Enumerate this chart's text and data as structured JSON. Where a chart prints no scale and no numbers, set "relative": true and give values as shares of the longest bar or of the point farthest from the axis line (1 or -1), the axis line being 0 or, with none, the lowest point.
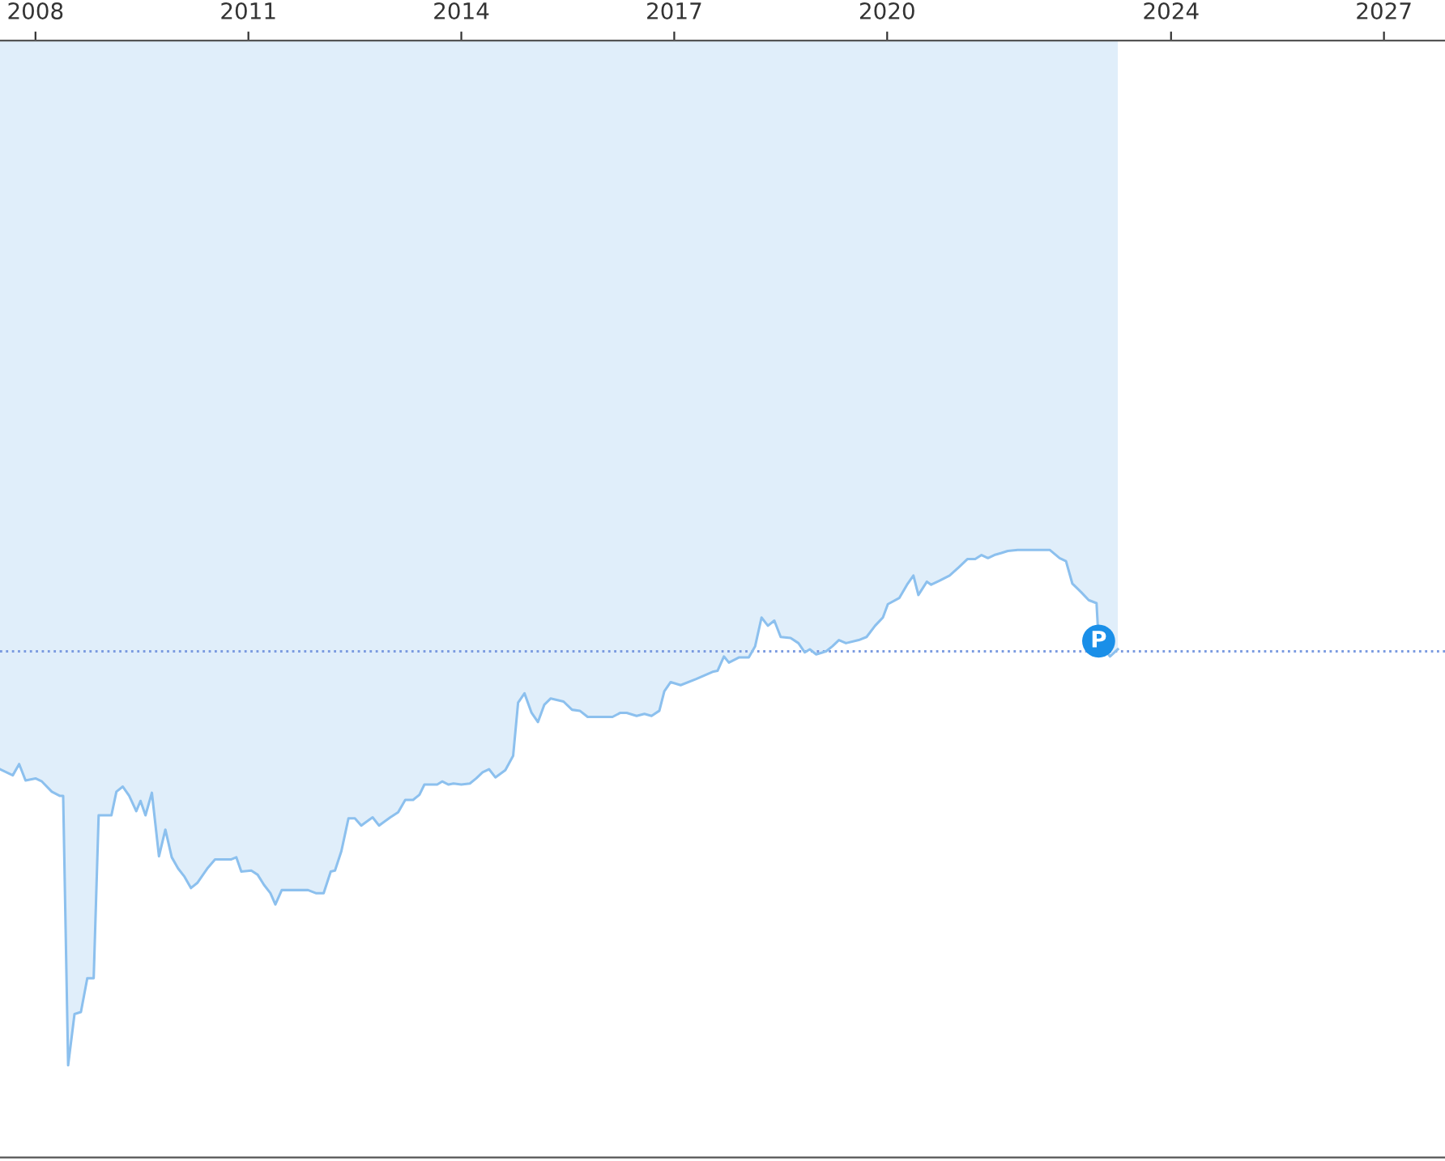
{
  "chart_data": {
    "type": "area",
    "relative": true,
    "x": [
      2007.5,
      2007.68,
      2007.77,
      2007.86,
      2008.0,
      2008.09,
      2008.23,
      2008.34,
      2008.39,
      2008.46,
      2008.55,
      2008.64,
      2008.73,
      2008.82,
      2008.89,
      2009.07,
      2009.14,
      2009.23,
      2009.32,
      2009.42,
      2009.48,
      2009.55,
      2009.64,
      2009.74,
      2009.83,
      2009.92,
      2010.01,
      2010.1,
      2010.19,
      2010.28,
      2010.42,
      2010.53,
      2010.76,
      2010.83,
      2010.9,
      2011.04,
      2011.13,
      2011.22,
      2011.31,
      2011.38,
      2011.47,
      2011.84,
      2011.95,
      2012.06,
      2012.16,
      2012.22,
      2012.31,
      2012.41,
      2012.5,
      2012.59,
      2012.75,
      2012.84,
      2013.0,
      2013.11,
      2013.21,
      2013.32,
      2013.41,
      2013.48,
      2013.66,
      2013.73,
      2013.82,
      2013.89,
      2014.0,
      2014.12,
      2014.21,
      2014.3,
      2014.39,
      2014.48,
      2014.62,
      2014.73,
      2014.8,
      2014.89,
      2014.99,
      2015.08,
      2015.17,
      2015.26,
      2015.44,
      2015.56,
      2015.67,
      2015.78,
      2016.13,
      2016.24,
      2016.33,
      2016.47,
      2016.58,
      2016.68,
      2016.79,
      2016.86,
      2016.95,
      2017.09,
      2017.31,
      2017.54,
      2017.61,
      2017.7,
      2017.77,
      2017.91,
      2018.05,
      2018.14,
      2018.23,
      2018.32,
      2018.41,
      2018.5,
      2018.64,
      2018.75,
      2018.84,
      2018.91,
      2019.0,
      2019.14,
      2019.23,
      2019.32,
      2019.42,
      2019.6,
      2019.71,
      2019.83,
      2019.94,
      2020.01,
      2020.17,
      2020.28,
      2020.37,
      2020.44,
      2020.56,
      2020.62,
      2020.74,
      2020.88,
      2021.01,
      2021.13,
      2021.24,
      2021.33,
      2021.42,
      2021.51,
      2021.61,
      2021.7,
      2021.84,
      2022.29,
      2022.43,
      2022.52,
      2022.61,
      2022.73,
      2022.84,
      2022.95,
      2022.98,
      2023.14,
      2023.25
    ],
    "series": [
      {
        "color": "#8cc0ee",
        "values": [
          -0.711,
          -0.717,
          -0.706,
          -0.722,
          -0.72,
          -0.723,
          -0.733,
          -0.737,
          -0.737,
          -1.0,
          -0.95,
          -0.948,
          -0.915,
          -0.915,
          -0.756,
          -0.756,
          -0.733,
          -0.728,
          -0.737,
          -0.752,
          -0.742,
          -0.756,
          -0.734,
          -0.796,
          -0.77,
          -0.797,
          -0.808,
          -0.816,
          -0.827,
          -0.822,
          -0.808,
          -0.799,
          -0.799,
          -0.797,
          -0.811,
          -0.81,
          -0.814,
          -0.824,
          -0.832,
          -0.843,
          -0.829,
          -0.829,
          -0.832,
          -0.832,
          -0.811,
          -0.81,
          -0.791,
          -0.759,
          -0.759,
          -0.766,
          -0.758,
          -0.766,
          -0.758,
          -0.753,
          -0.741,
          -0.741,
          -0.736,
          -0.726,
          -0.726,
          -0.723,
          -0.726,
          -0.725,
          -0.726,
          -0.725,
          -0.72,
          -0.714,
          -0.711,
          -0.719,
          -0.712,
          -0.698,
          -0.646,
          -0.637,
          -0.656,
          -0.665,
          -0.648,
          -0.642,
          -0.645,
          -0.653,
          -0.654,
          -0.66,
          -0.66,
          -0.656,
          -0.656,
          -0.659,
          -0.657,
          -0.659,
          -0.654,
          -0.635,
          -0.626,
          -0.629,
          -0.623,
          -0.616,
          -0.615,
          -0.601,
          -0.607,
          -0.602,
          -0.602,
          -0.591,
          -0.563,
          -0.571,
          -0.566,
          -0.582,
          -0.583,
          -0.588,
          -0.597,
          -0.594,
          -0.599,
          -0.596,
          -0.591,
          -0.585,
          -0.588,
          -0.585,
          -0.582,
          -0.571,
          -0.563,
          -0.55,
          -0.544,
          -0.531,
          -0.522,
          -0.541,
          -0.528,
          -0.531,
          -0.527,
          -0.522,
          -0.514,
          -0.506,
          -0.506,
          -0.502,
          -0.505,
          -0.502,
          -0.5,
          -0.498,
          -0.497,
          -0.497,
          -0.505,
          -0.508,
          -0.53,
          -0.538,
          -0.546,
          -0.549,
          -0.586,
          -0.601,
          -0.594
        ]
      }
    ],
    "xlim": [
      2007.5,
      2027.86
    ],
    "xticks": [
      2008,
      2011,
      2014,
      2017,
      2020,
      2024,
      2027
    ],
    "ref_lines": [
      {
        "axis": "y",
        "value": -0.596,
        "color": "#7b9be0",
        "line_style": "dotted"
      }
    ],
    "annotations": [
      {
        "text": "P",
        "x": 2022.98,
        "y": -0.586
      }
    ],
    "grid": false,
    "marker": "none",
    "line_style": "solid"
  }
}
